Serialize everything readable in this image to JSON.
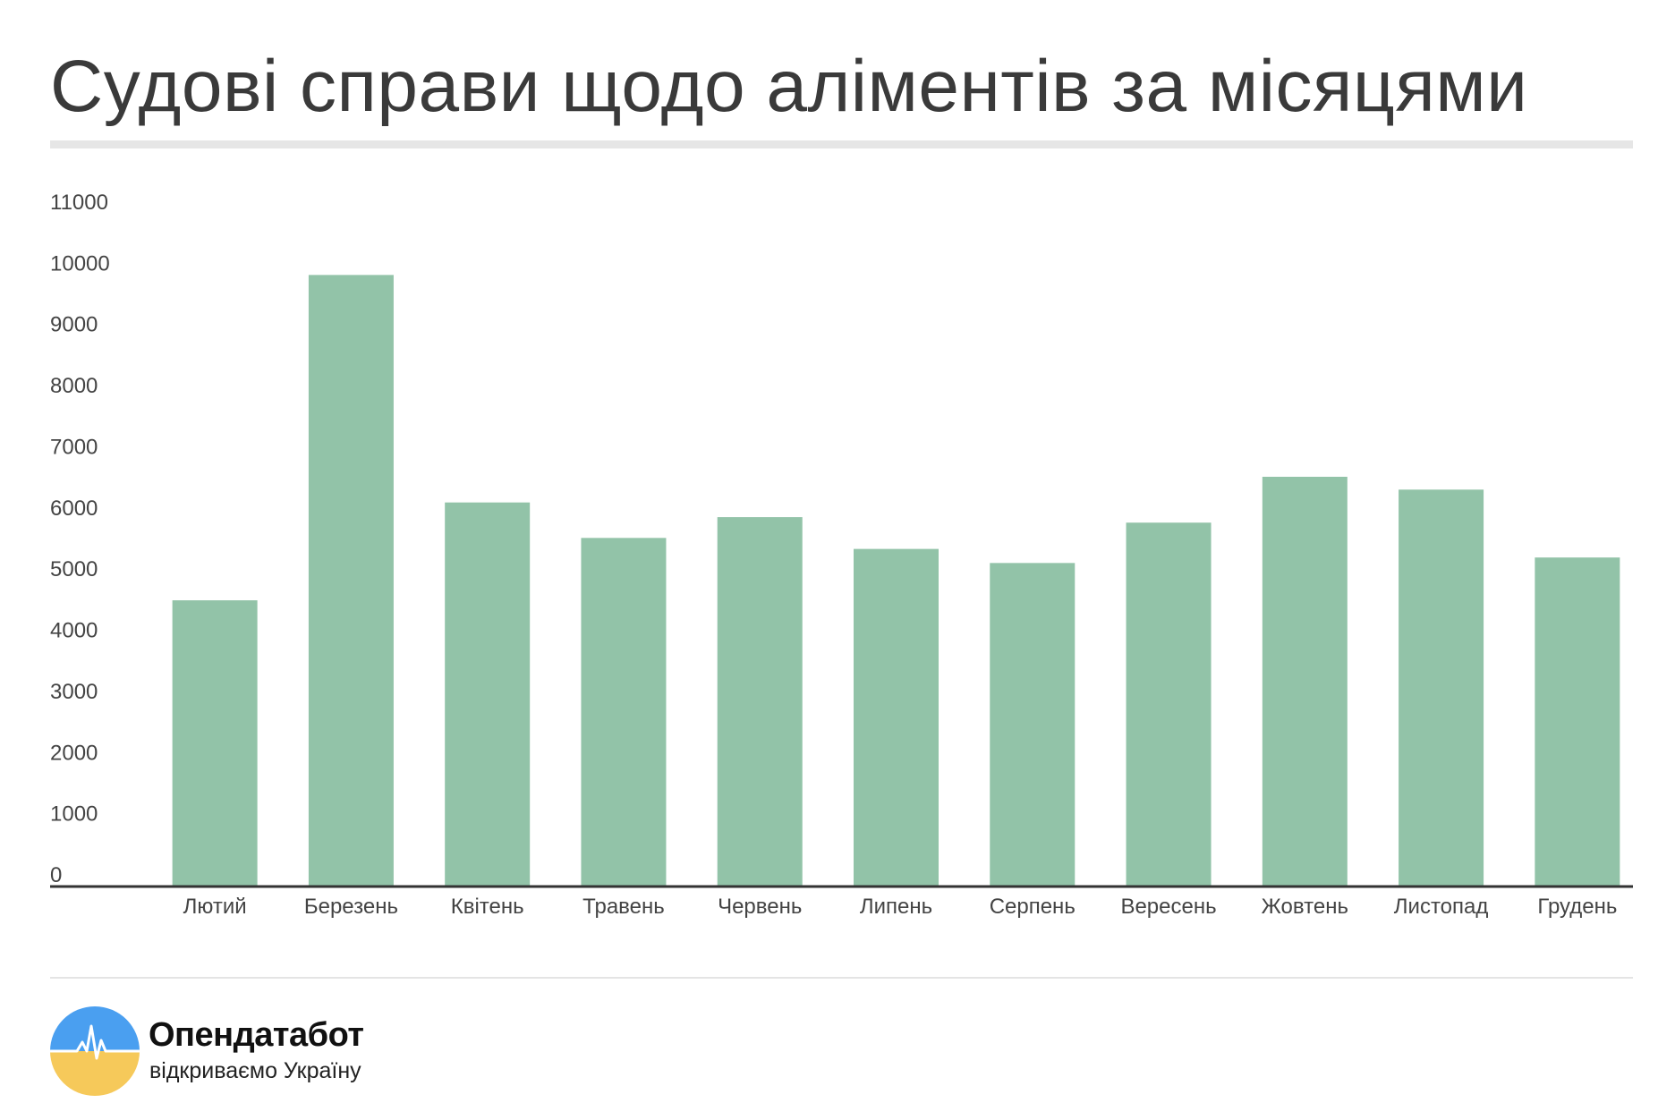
{
  "header": {
    "title": "Судові справи щодо аліментів за місяцями"
  },
  "colors": {
    "bar": "#92c3a8",
    "axis": "#333333",
    "tick_text": "#444444",
    "title_rule": "#e6e6e6",
    "logo_blue": "#4a9ff0",
    "logo_yellow": "#f6c95a"
  },
  "chart_data": {
    "type": "bar",
    "title": "",
    "xlabel": "",
    "ylabel": "",
    "categories": [
      "Лютий",
      "Березень",
      "Квітень",
      "Травень",
      "Червень",
      "Липень",
      "Серпень",
      "Вересень",
      "Жовтень",
      "Листопад",
      "Грудень"
    ],
    "values": [
      4680,
      10000,
      6280,
      5700,
      6040,
      5520,
      5290,
      5950,
      6700,
      6490,
      5380
    ],
    "ylim": [
      0,
      11000
    ],
    "yticks": [
      0,
      1000,
      2000,
      3000,
      4000,
      5000,
      6000,
      7000,
      8000,
      9000,
      10000,
      11000
    ],
    "grid": false,
    "legend": "none"
  },
  "footer": {
    "logo_icon": "opendatabot-logo-icon",
    "brand_name": "Опендатабот",
    "tagline": "відкриваємо Україну"
  }
}
